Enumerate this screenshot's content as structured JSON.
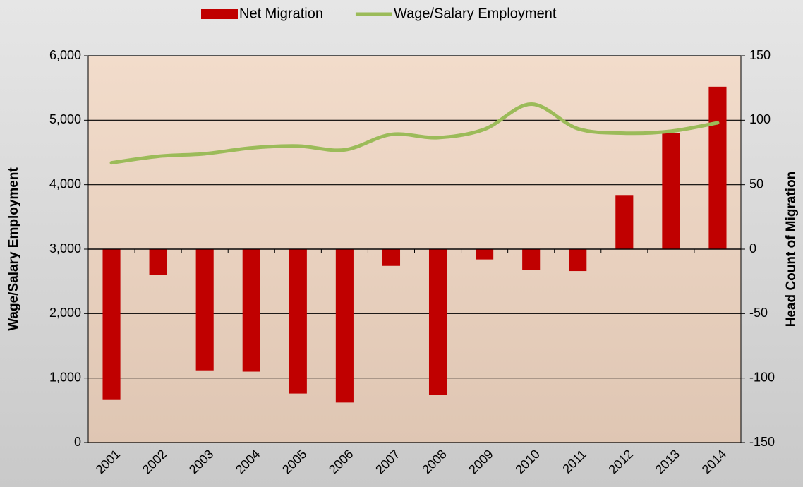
{
  "chart_data": {
    "type": "bar-line",
    "categories": [
      "2001",
      "2002",
      "2003",
      "2004",
      "2005",
      "2006",
      "2007",
      "2008",
      "2009",
      "2010",
      "2011",
      "2012",
      "2013",
      "2014"
    ],
    "series": [
      {
        "name": "Net Migration",
        "type": "bar",
        "axis": "y2",
        "color": "#c00000",
        "values": [
          -117,
          -20,
          -94,
          -95,
          -112,
          -119,
          -13,
          -113,
          -8,
          -16,
          -17,
          42,
          90,
          126
        ]
      },
      {
        "name": "Wage/Salary Employment",
        "type": "line",
        "axis": "y",
        "color": "#9bbb59",
        "values": [
          4340,
          4440,
          4480,
          4570,
          4600,
          4540,
          4780,
          4730,
          4860,
          5250,
          4870,
          4800,
          4830,
          4960
        ]
      }
    ],
    "ylabel": "Wage/Salary Employment",
    "y2label": "Head Count of Migration",
    "ylim": [
      0,
      6000
    ],
    "yticks": [
      0,
      {
        "value": 1000,
        "label": "1,000"
      },
      {
        "value": 2000,
        "label": "2,000"
      },
      {
        "value": 3000,
        "label": "3,000"
      },
      {
        "value": 4000,
        "label": "4,000"
      },
      {
        "value": 5000,
        "label": "5,000"
      },
      {
        "value": 6000,
        "label": "6,000"
      }
    ],
    "y2lim": [
      -150,
      150
    ],
    "y2ticks": [
      -150,
      -100,
      -50,
      0,
      50,
      100,
      150
    ],
    "grid": true,
    "legend": "top"
  }
}
